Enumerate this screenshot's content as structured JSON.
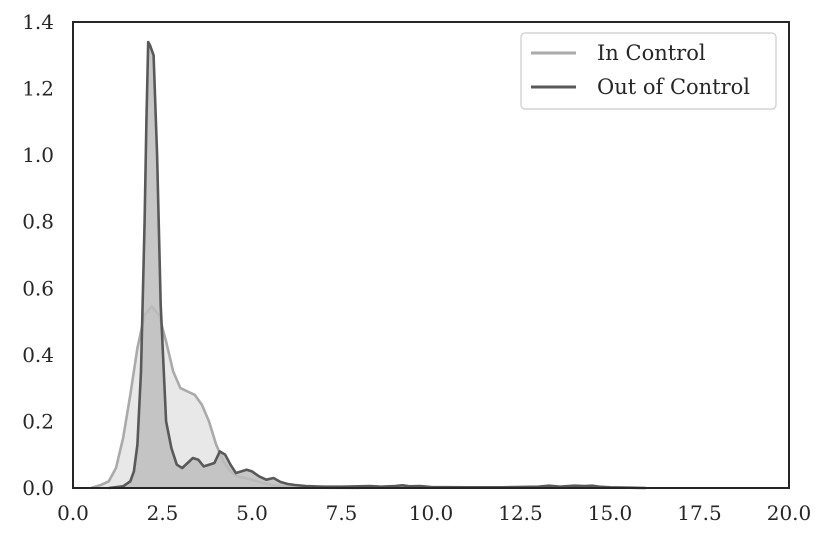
{
  "chart_data": {
    "type": "area",
    "title": "",
    "xlabel": "",
    "ylabel": "",
    "xlim": [
      0,
      20
    ],
    "ylim": [
      0,
      1.4
    ],
    "xticks": [
      0,
      2.5,
      5,
      7.5,
      10,
      12.5,
      15,
      17.5,
      20
    ],
    "xtick_labels": [
      "0.0",
      "2.5",
      "5.0",
      "7.5",
      "10.0",
      "12.5",
      "15.0",
      "17.5",
      "20.0"
    ],
    "yticks": [
      0,
      0.2,
      0.4,
      0.6,
      0.8,
      1.0,
      1.2,
      1.4
    ],
    "ytick_labels": [
      "0.0",
      "0.2",
      "0.4",
      "0.6",
      "0.8",
      "1.0",
      "1.2",
      "1.4"
    ],
    "grid": false,
    "legend_position": "top-right",
    "series": [
      {
        "name": "In Control",
        "color": "#aaaaaa",
        "fill": "#e6e6e6",
        "x": [
          0.5,
          0.8,
          1.0,
          1.2,
          1.4,
          1.6,
          1.8,
          2.0,
          2.2,
          2.4,
          2.6,
          2.8,
          3.0,
          3.2,
          3.4,
          3.6,
          3.8,
          4.0,
          4.2,
          4.4,
          4.6,
          4.8,
          5.0,
          5.3,
          5.6,
          6.0,
          6.5,
          7.0,
          8.0
        ],
        "y": [
          0.0,
          0.01,
          0.02,
          0.06,
          0.15,
          0.28,
          0.42,
          0.52,
          0.545,
          0.52,
          0.44,
          0.35,
          0.3,
          0.29,
          0.28,
          0.25,
          0.2,
          0.13,
          0.08,
          0.05,
          0.035,
          0.03,
          0.025,
          0.015,
          0.008,
          0.004,
          0.002,
          0.001,
          0.0
        ]
      },
      {
        "name": "Out of Control",
        "color": "#595959",
        "fill": "#bdbdbd",
        "x": [
          1.0,
          1.4,
          1.6,
          1.7,
          1.8,
          1.9,
          2.0,
          2.05,
          2.1,
          2.15,
          2.25,
          2.35,
          2.45,
          2.6,
          2.75,
          2.9,
          3.05,
          3.2,
          3.35,
          3.5,
          3.65,
          3.8,
          3.95,
          4.1,
          4.25,
          4.4,
          4.55,
          4.7,
          4.85,
          5.0,
          5.2,
          5.4,
          5.6,
          5.8,
          6.0,
          6.2,
          6.5,
          7.0,
          7.5,
          8.0,
          8.3,
          8.6,
          9.0,
          9.2,
          9.4,
          9.7,
          10.0,
          11.0,
          12.0,
          13.0,
          13.3,
          13.6,
          14.0,
          14.3,
          14.5,
          14.7,
          15.0,
          16.0
        ],
        "y": [
          0.0,
          0.005,
          0.02,
          0.05,
          0.13,
          0.35,
          0.8,
          1.1,
          1.34,
          1.33,
          1.3,
          1.0,
          0.55,
          0.2,
          0.12,
          0.07,
          0.06,
          0.075,
          0.09,
          0.085,
          0.065,
          0.07,
          0.075,
          0.11,
          0.1,
          0.07,
          0.045,
          0.05,
          0.055,
          0.05,
          0.035,
          0.025,
          0.03,
          0.018,
          0.012,
          0.009,
          0.006,
          0.004,
          0.004,
          0.005,
          0.006,
          0.004,
          0.006,
          0.008,
          0.005,
          0.006,
          0.003,
          0.002,
          0.002,
          0.004,
          0.007,
          0.004,
          0.007,
          0.006,
          0.007,
          0.004,
          0.002,
          0.0
        ]
      }
    ]
  }
}
